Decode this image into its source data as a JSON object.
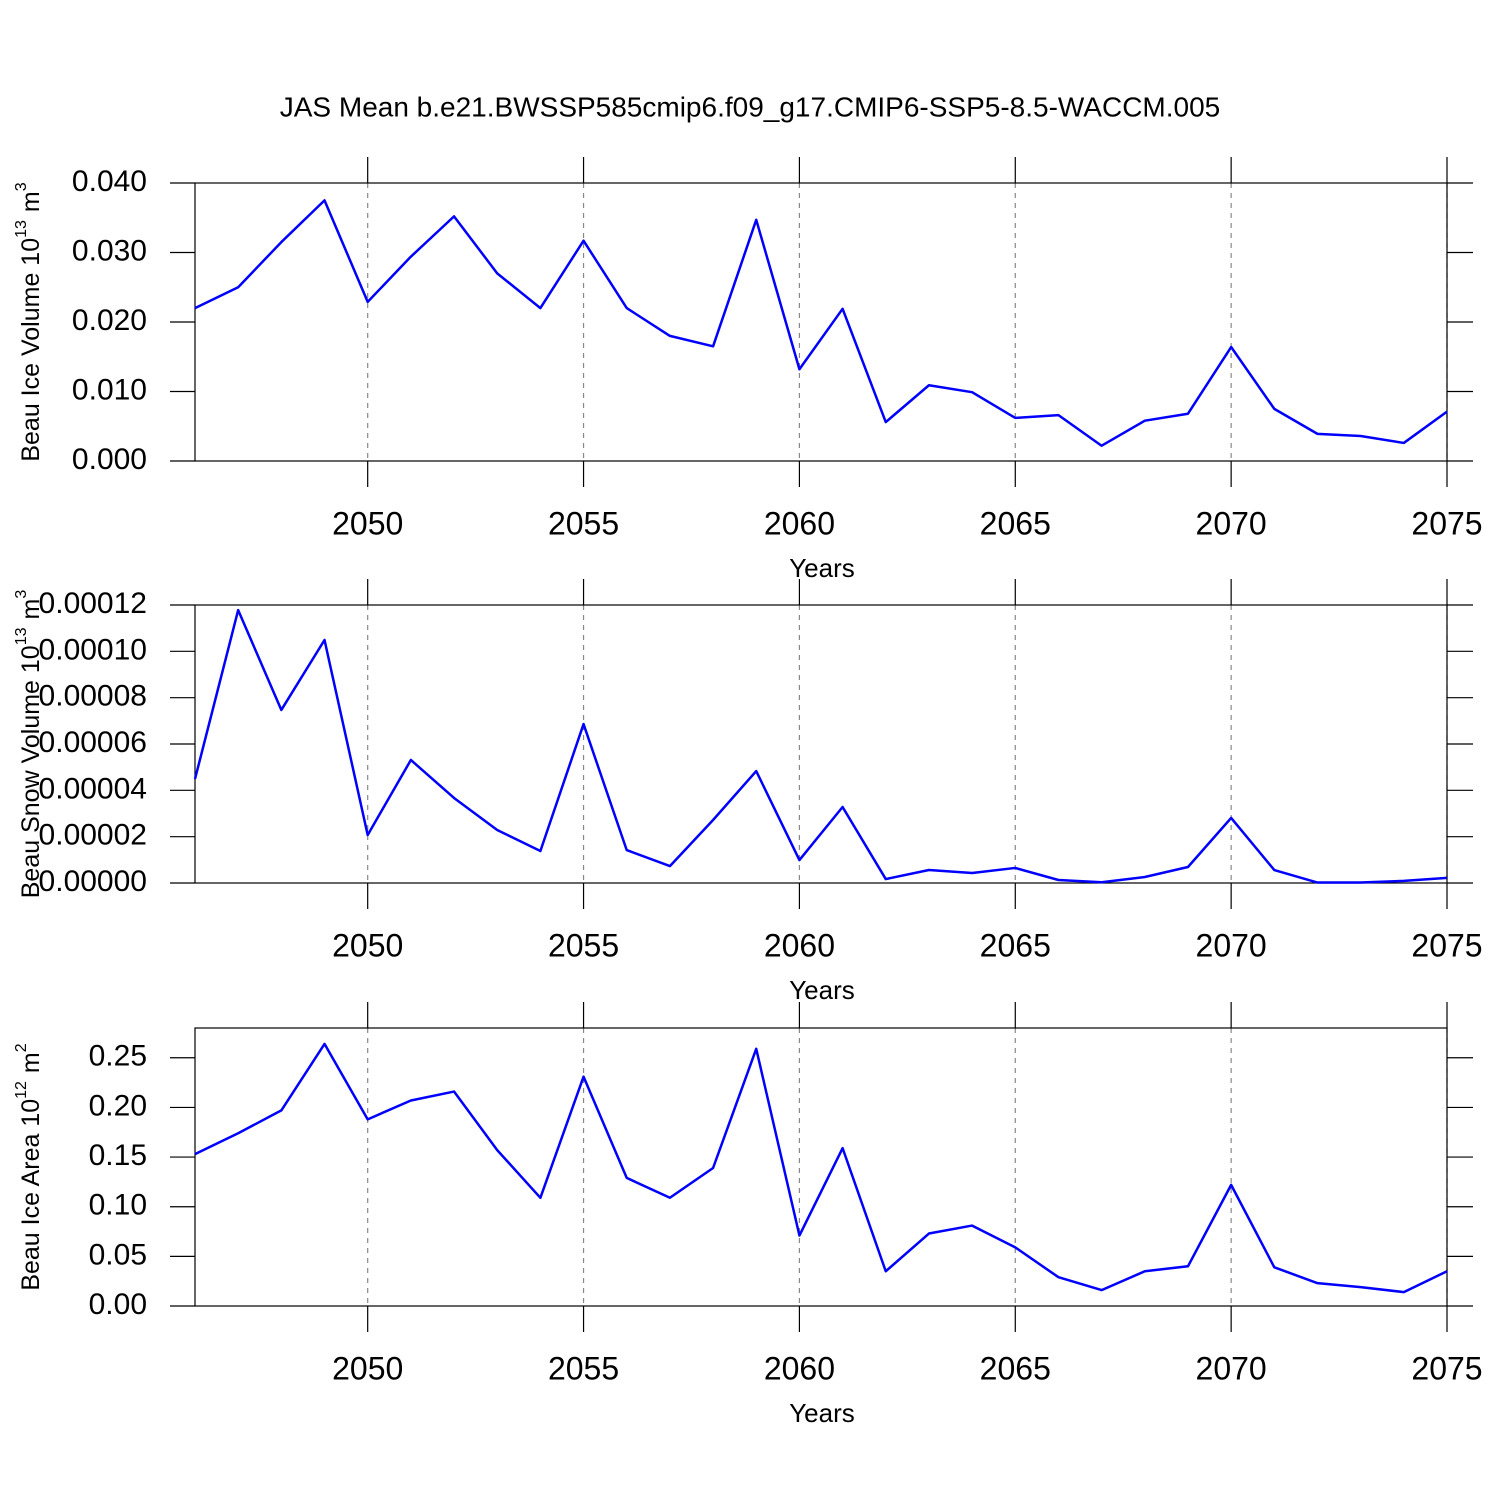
{
  "chart_data": [
    {
      "type": "line",
      "title": "JAS Mean b.e21.BWSSP585cmip6.f09_g17.CMIP6-SSP5-8.5-WACCM.005",
      "x_label": "Years",
      "y_label": {
        "text": "Beau Ice Volume 10",
        "exp": "13",
        "unit": "m",
        "unit_exp": "3"
      },
      "x": [
        2046,
        2047,
        2048,
        2049,
        2050,
        2051,
        2052,
        2053,
        2054,
        2055,
        2056,
        2057,
        2058,
        2059,
        2060,
        2061,
        2062,
        2063,
        2064,
        2065,
        2066,
        2067,
        2068,
        2069,
        2070,
        2071,
        2072,
        2073,
        2074,
        2075
      ],
      "series": [
        {
          "color": "#0000ff",
          "values": [
            0.022,
            0.025,
            0.0315,
            0.0375,
            0.0229,
            0.0294,
            0.0352,
            0.027,
            0.022,
            0.0317,
            0.022,
            0.018,
            0.0165,
            0.0347,
            0.0132,
            0.0219,
            0.0056,
            0.0109,
            0.0099,
            0.0062,
            0.0066,
            0.0022,
            0.0058,
            0.0068,
            0.0164,
            0.0075,
            0.0039,
            0.0036,
            0.0026,
            0.0071
          ]
        }
      ],
      "xlim": [
        2046,
        2075
      ],
      "xticks": [
        2050,
        2055,
        2060,
        2065,
        2070,
        2075
      ],
      "ylim": [
        0,
        0.04
      ],
      "yticks": [
        {
          "value": 0,
          "label": "0.000"
        },
        {
          "value": 0.01,
          "label": "0.010"
        },
        {
          "value": 0.02,
          "label": "0.020"
        },
        {
          "value": 0.03,
          "label": "0.030"
        },
        {
          "value": 0.04,
          "label": "0.040"
        }
      ],
      "grid": "x-dashed"
    },
    {
      "type": "line",
      "x_label": "Years",
      "y_label": {
        "text": "Beau Snow Volume 10",
        "exp": "13",
        "unit": "m",
        "unit_exp": "3"
      },
      "x": [
        2046,
        2047,
        2048,
        2049,
        2050,
        2051,
        2052,
        2053,
        2054,
        2055,
        2056,
        2057,
        2058,
        2059,
        2060,
        2061,
        2062,
        2063,
        2064,
        2065,
        2066,
        2067,
        2068,
        2069,
        2070,
        2071,
        2072,
        2073,
        2074,
        2075
      ],
      "series": [
        {
          "color": "#0000ff",
          "values": [
            4.49e-05,
            0.0001178,
            7.47e-05,
            0.0001049,
            2.07e-05,
            5.31e-05,
            3.67e-05,
            2.29e-05,
            1.38e-05,
            6.86e-05,
            1.42e-05,
            7.3e-06,
            2.72e-05,
            4.83e-05,
            9.9e-06,
            3.28e-05,
            1.7e-06,
            5.6e-06,
            4.3e-06,
            6.5e-06,
            1.3e-06,
            3e-07,
            2.6e-06,
            6.9e-06,
            2.81e-05,
            5.6e-06,
            2e-07,
            2e-07,
            9e-07,
            2.2e-06
          ]
        }
      ],
      "xlim": [
        2046,
        2075
      ],
      "xticks": [
        2050,
        2055,
        2060,
        2065,
        2070,
        2075
      ],
      "ylim": [
        0,
        0.00012
      ],
      "yticks": [
        {
          "value": 0,
          "label": "0.00000"
        },
        2e-05,
        4e-05,
        6e-05,
        8e-05,
        {
          "value": 0.0001,
          "label": "0.00010"
        },
        0.00012
      ],
      "grid": "x-dashed"
    },
    {
      "type": "line",
      "x_label": "Years",
      "y_label": {
        "text": "Beau Ice Area 10",
        "exp": "12",
        "unit": "m",
        "unit_exp": "2"
      },
      "x": [
        2046,
        2047,
        2048,
        2049,
        2050,
        2051,
        2052,
        2053,
        2054,
        2055,
        2056,
        2057,
        2058,
        2059,
        2060,
        2061,
        2062,
        2063,
        2064,
        2065,
        2066,
        2067,
        2068,
        2069,
        2070,
        2071,
        2072,
        2073,
        2074,
        2075
      ],
      "series": [
        {
          "color": "#0000ff",
          "values": [
            0.153,
            0.174,
            0.197,
            0.264,
            0.188,
            0.207,
            0.216,
            0.157,
            0.109,
            0.231,
            0.129,
            0.109,
            0.139,
            0.259,
            0.071,
            0.159,
            0.035,
            0.073,
            0.081,
            0.059,
            0.029,
            0.016,
            0.035,
            0.04,
            0.122,
            0.039,
            0.023,
            0.019,
            0.014,
            0.035
          ]
        }
      ],
      "xlim": [
        2046,
        2075
      ],
      "xticks": [
        2050,
        2055,
        2060,
        2065,
        2070,
        2075
      ],
      "ylim": [
        0,
        0.28
      ],
      "yticks": [
        {
          "value": 0,
          "label": "0.00"
        },
        0.05,
        {
          "value": 0.1,
          "label": "0.10"
        },
        0.15,
        {
          "value": 0.2,
          "label": "0.20"
        },
        0.25
      ],
      "grid": "x-dashed"
    }
  ]
}
